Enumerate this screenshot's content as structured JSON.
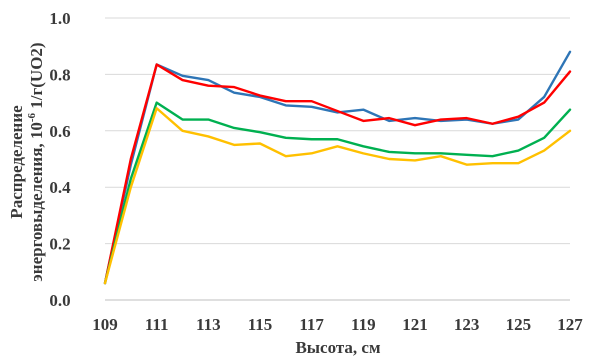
{
  "chart_data": {
    "type": "line",
    "title": "",
    "xlabel": "Высота, см",
    "ylabel_line1": "Распределение",
    "ylabel_line2_prefix": "энерговыделения, 10",
    "ylabel_line2_sup": "-6",
    "ylabel_line2_suffix": " 1/г(UO2)",
    "xlim": [
      109,
      127
    ],
    "ylim": [
      0,
      1.0
    ],
    "grid": true,
    "legend": "none",
    "x_ticks": [
      {
        "value": 109,
        "label": "109"
      },
      {
        "value": 111,
        "label": "111"
      },
      {
        "value": 113,
        "label": "113"
      },
      {
        "value": 115,
        "label": "115"
      },
      {
        "value": 117,
        "label": "117"
      },
      {
        "value": 119,
        "label": "119"
      },
      {
        "value": 121,
        "label": "121"
      },
      {
        "value": 123,
        "label": "123"
      },
      {
        "value": 125,
        "label": "125"
      },
      {
        "value": 127,
        "label": "127"
      }
    ],
    "y_ticks": [
      {
        "value": 0,
        "label": "0.0"
      },
      {
        "value": 0.2,
        "label": "0.2"
      },
      {
        "value": 0.4,
        "label": "0.4"
      },
      {
        "value": 0.6,
        "label": "0.6"
      },
      {
        "value": 0.8,
        "label": "0.8"
      },
      {
        "value": 1.0,
        "label": "1.0"
      }
    ],
    "x": [
      109,
      110,
      111,
      112,
      113,
      114,
      115,
      116,
      117,
      118,
      119,
      120,
      121,
      122,
      123,
      124,
      125,
      126,
      127
    ],
    "series": [
      {
        "color": "#2e75b6",
        "values": [
          0.06,
          0.48,
          0.835,
          0.795,
          0.78,
          0.735,
          0.72,
          0.69,
          0.685,
          0.665,
          0.675,
          0.635,
          0.645,
          0.635,
          0.64,
          0.625,
          0.64,
          0.72,
          0.88
        ]
      },
      {
        "color": "#ff0000",
        "values": [
          0.06,
          0.5,
          0.835,
          0.78,
          0.76,
          0.755,
          0.725,
          0.705,
          0.705,
          0.67,
          0.635,
          0.645,
          0.62,
          0.64,
          0.645,
          0.625,
          0.65,
          0.7,
          0.81
        ]
      },
      {
        "color": "#00b050",
        "values": [
          0.06,
          0.43,
          0.7,
          0.64,
          0.64,
          0.61,
          0.595,
          0.575,
          0.57,
          0.57,
          0.545,
          0.525,
          0.52,
          0.52,
          0.515,
          0.51,
          0.53,
          0.575,
          0.675
        ]
      },
      {
        "color": "#ffc000",
        "values": [
          0.06,
          0.4,
          0.68,
          0.6,
          0.58,
          0.55,
          0.555,
          0.51,
          0.52,
          0.545,
          0.52,
          0.5,
          0.495,
          0.51,
          0.48,
          0.485,
          0.485,
          0.53,
          0.6
        ]
      }
    ]
  }
}
